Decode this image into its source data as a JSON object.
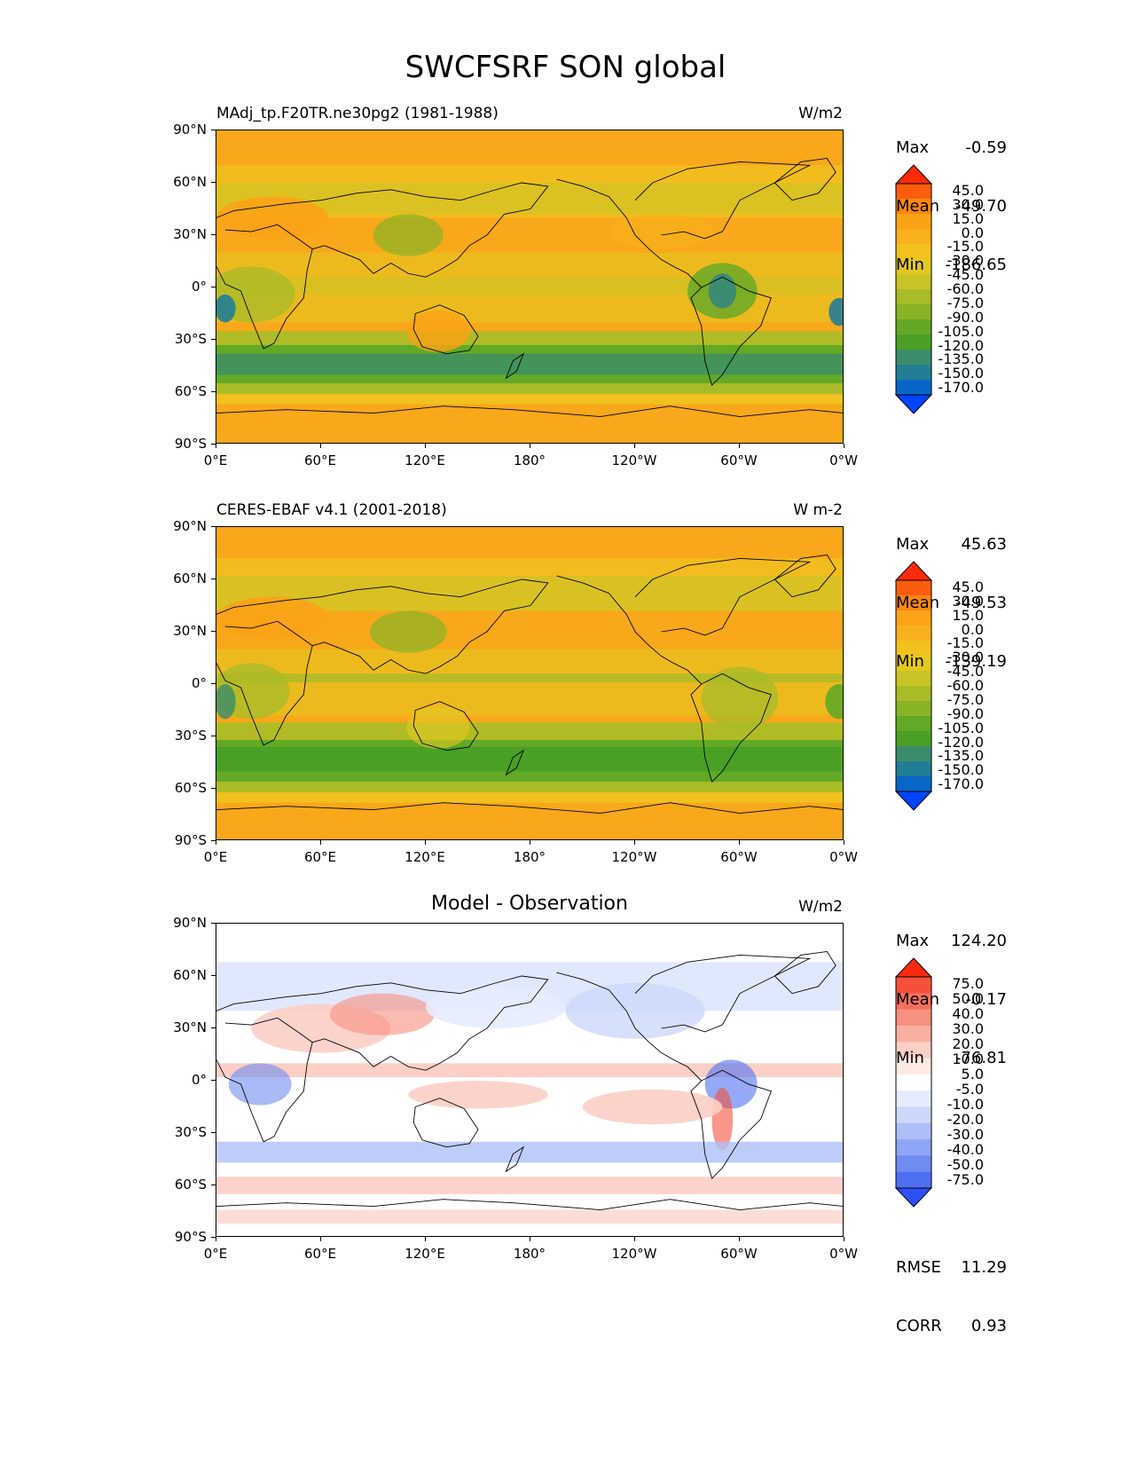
{
  "title": "SWCFSRF SON global",
  "lat_ticks": [
    "90°N",
    "60°N",
    "30°N",
    "0°",
    "30°S",
    "60°S",
    "90°S"
  ],
  "lon_ticks": [
    "0°E",
    "60°E",
    "120°E",
    "180°",
    "120°W",
    "60°W",
    "0°W"
  ],
  "panels": [
    {
      "id": "model",
      "left_label": "MAdj_tp.F20TR.ne30pg2 (1981-1988)",
      "center_title": "",
      "units": "W/m2",
      "stats": {
        "max_label": "Max",
        "max": "-0.59",
        "mean_label": "Mean",
        "mean": "-49.70",
        "min_label": "Min",
        "min": "-186.65"
      },
      "colorbar": {
        "levels": [
          "45.0",
          "30.0",
          "15.0",
          "0.0",
          "-15.0",
          "-30.0",
          "-45.0",
          "-60.0",
          "-75.0",
          "-90.0",
          "-105.0",
          "-120.0",
          "-135.0",
          "-150.0",
          "-170.0"
        ],
        "colors": [
          "#fe2a0a",
          "#fc5d0d",
          "#fb8712",
          "#fba217",
          "#f8b01c",
          "#f1c11f",
          "#e3c823",
          "#c8c426",
          "#a9bc27",
          "#88b326",
          "#62a925",
          "#4aa024",
          "#3a8c6c",
          "#227e94",
          "#0866c6",
          "#0044ff"
        ]
      }
    },
    {
      "id": "obs",
      "left_label": "CERES-EBAF v4.1 (2001-2018)",
      "center_title": "",
      "units": "W m-2",
      "stats": {
        "max_label": "Max",
        "max": "45.63",
        "mean_label": "Mean",
        "mean": "-49.53",
        "min_label": "Min",
        "min": "-139.19"
      },
      "colorbar": {
        "levels": [
          "45.0",
          "30.0",
          "15.0",
          "0.0",
          "-15.0",
          "-30.0",
          "-45.0",
          "-60.0",
          "-75.0",
          "-90.0",
          "-105.0",
          "-120.0",
          "-135.0",
          "-150.0",
          "-170.0"
        ],
        "colors": [
          "#fe2a0a",
          "#fc5d0d",
          "#fb8712",
          "#fba217",
          "#f8b01c",
          "#f1c11f",
          "#e3c823",
          "#c8c426",
          "#a9bc27",
          "#88b326",
          "#62a925",
          "#4aa024",
          "#3a8c6c",
          "#227e94",
          "#0866c6",
          "#0044ff"
        ]
      }
    },
    {
      "id": "diff",
      "left_label": "",
      "center_title": "Model - Observation",
      "units": "W/m2",
      "stats": {
        "max_label": "Max",
        "max": "124.20",
        "mean_label": "Mean",
        "mean": "-0.17",
        "min_label": "Min",
        "min": "-76.81"
      },
      "extra_stats": {
        "rmse_label": "RMSE",
        "rmse": "11.29",
        "corr_label": "CORR",
        "corr": "0.93"
      },
      "colorbar": {
        "levels": [
          "75.0",
          "50.0",
          "40.0",
          "30.0",
          "20.0",
          "10.0",
          "5.0",
          "-5.0",
          "-10.0",
          "-20.0",
          "-30.0",
          "-40.0",
          "-50.0",
          "-75.0"
        ],
        "colors": [
          "#fa2a0c",
          "#f5503a",
          "#f5705e",
          "#f6907f",
          "#f9afa0",
          "#fccec4",
          "#feeae5",
          "#ffffff",
          "#e6ecfd",
          "#ccd8fb",
          "#aebff8",
          "#8ea6f5",
          "#6f8cf2",
          "#4f6ff2",
          "#2c4ff6"
        ]
      }
    }
  ]
}
